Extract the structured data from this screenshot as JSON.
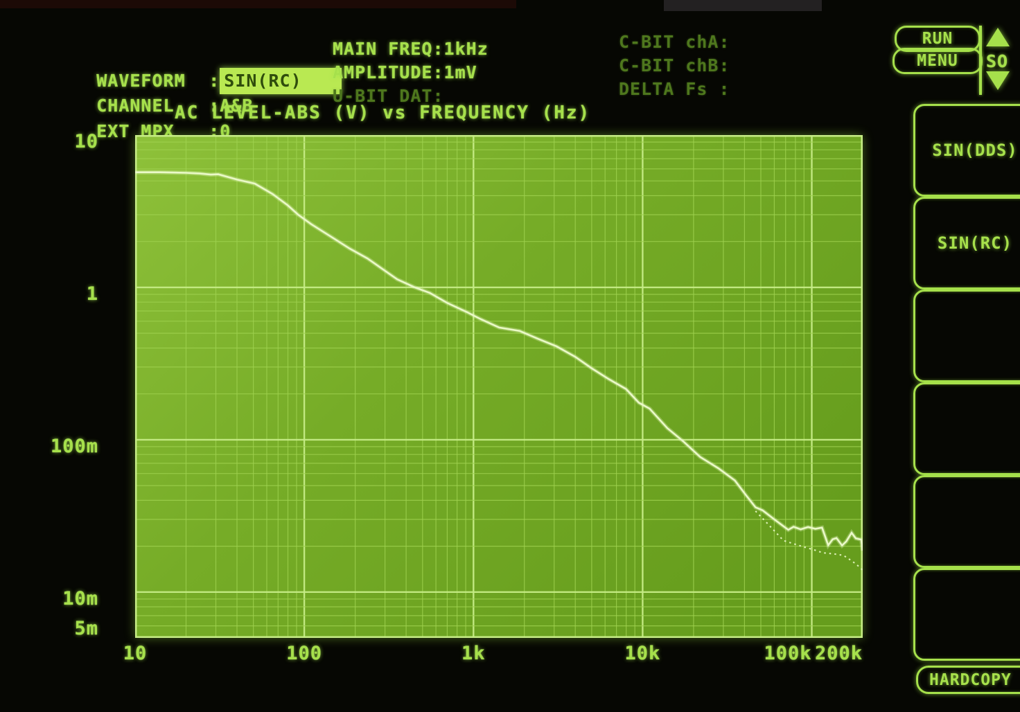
{
  "colors": {
    "accent": "#a6e04b",
    "dim_text": "#4e771d",
    "highlight_bg": "#b9e952",
    "highlight_text": "#2f4d0c",
    "plot_bg_top": "#8ec13a",
    "plot_bg_mid": "#76ac27",
    "plot_bg_bottom": "#669d1d",
    "grid_minor": "#9fd24f",
    "grid_major": "#c6ec86",
    "trace": "#eaf9c8"
  },
  "header": {
    "left": [
      {
        "label": "WAVEFORM",
        "sep": ":",
        "value": "SIN(RC)",
        "highlighted": true
      },
      {
        "label": "CHANNEL",
        "sep": ":",
        "value": "A&B",
        "highlighted": false
      },
      {
        "label": "EXT MPX",
        "sep": ":",
        "value": "0",
        "highlighted": false
      }
    ],
    "center": [
      {
        "text": "MAIN FREQ:1kHz",
        "dim": false
      },
      {
        "text": "AMPLITUDE:1mV",
        "dim": false
      },
      {
        "text": "U-BIT DAT:",
        "dim": true
      }
    ],
    "right": [
      {
        "text": "C-BIT chA:",
        "dim": true
      },
      {
        "text": "C-BIT chB:",
        "dim": true
      },
      {
        "text": "DELTA Fs :",
        "dim": true
      }
    ]
  },
  "controls": {
    "run": "RUN",
    "menu": "MENU",
    "so": "SO",
    "hardcopy": "HARDCOPY"
  },
  "softkeys": [
    {
      "label": "SIN(DDS)"
    },
    {
      "label": "SIN(RC)"
    },
    {
      "label": ""
    },
    {
      "label": ""
    },
    {
      "label": ""
    },
    {
      "label": ""
    }
  ],
  "chart_data": {
    "type": "line",
    "title": "AC LEVEL-ABS (V) vs FREQUENCY (Hz)",
    "xlabel": "FREQUENCY (Hz)",
    "ylabel": "AC LEVEL-ABS (V)",
    "x_scale": "log",
    "y_scale": "log",
    "xlim": [
      10,
      200000
    ],
    "ylim": [
      0.005,
      10
    ],
    "grid": true,
    "x_ticks": [
      {
        "label": "10",
        "value": 10
      },
      {
        "label": "100",
        "value": 100
      },
      {
        "label": "1k",
        "value": 1000
      },
      {
        "label": "10k",
        "value": 10000
      },
      {
        "label": "100k",
        "value": 100000
      },
      {
        "label": "200k",
        "value": 200000
      }
    ],
    "y_ticks": [
      {
        "label": "10",
        "value": 10
      },
      {
        "label": "1",
        "value": 1
      },
      {
        "label": "100m",
        "value": 0.1
      },
      {
        "label": "10m",
        "value": 0.01
      },
      {
        "label": "5m",
        "value": 0.005
      }
    ],
    "series": [
      {
        "name": "level-vs-frequency",
        "style": "solid",
        "points": [
          [
            10,
            5.7
          ],
          [
            14,
            5.7
          ],
          [
            20,
            5.65
          ],
          [
            24,
            5.6
          ],
          [
            28,
            5.5
          ],
          [
            31,
            5.53
          ],
          [
            40,
            5.1
          ],
          [
            51,
            4.8
          ],
          [
            65,
            4.1
          ],
          [
            80,
            3.45
          ],
          [
            92,
            3.0
          ],
          [
            110,
            2.6
          ],
          [
            147,
            2.12
          ],
          [
            185,
            1.8
          ],
          [
            236,
            1.55
          ],
          [
            290,
            1.32
          ],
          [
            354,
            1.13
          ],
          [
            450,
            1.0
          ],
          [
            552,
            0.92
          ],
          [
            700,
            0.79
          ],
          [
            911,
            0.69
          ],
          [
            1100,
            0.62
          ],
          [
            1419,
            0.545
          ],
          [
            1880,
            0.517
          ],
          [
            2400,
            0.46
          ],
          [
            3100,
            0.41
          ],
          [
            4000,
            0.35
          ],
          [
            4980,
            0.295
          ],
          [
            6300,
            0.25
          ],
          [
            7980,
            0.215
          ],
          [
            9500,
            0.175
          ],
          [
            11000,
            0.16
          ],
          [
            14000,
            0.119
          ],
          [
            17500,
            0.097
          ],
          [
            21900,
            0.077
          ],
          [
            28000,
            0.065
          ],
          [
            35100,
            0.054
          ],
          [
            41000,
            0.043
          ],
          [
            46500,
            0.036
          ],
          [
            51200,
            0.0344
          ],
          [
            60000,
            0.03
          ],
          [
            72600,
            0.0256
          ],
          [
            78000,
            0.0268
          ],
          [
            86000,
            0.0258
          ],
          [
            95000,
            0.0267
          ],
          [
            105000,
            0.026
          ],
          [
            115000,
            0.0265
          ],
          [
            125000,
            0.0203
          ],
          [
            133000,
            0.0222
          ],
          [
            140000,
            0.0226
          ],
          [
            151000,
            0.0202
          ],
          [
            160000,
            0.0215
          ],
          [
            172000,
            0.0245
          ],
          [
            182000,
            0.0225
          ],
          [
            196000,
            0.0221
          ],
          [
            200000,
            0.0187
          ]
        ]
      },
      {
        "name": "level-vs-frequency-chB",
        "style": "dotted",
        "points": [
          [
            46500,
            0.034
          ],
          [
            55000,
            0.028
          ],
          [
            68000,
            0.0218
          ],
          [
            88000,
            0.0199
          ],
          [
            105000,
            0.0188
          ],
          [
            116000,
            0.0181
          ],
          [
            135000,
            0.0178
          ],
          [
            154000,
            0.0174
          ],
          [
            174000,
            0.0159
          ],
          [
            190000,
            0.0147
          ],
          [
            200000,
            0.0139
          ]
        ]
      }
    ]
  }
}
